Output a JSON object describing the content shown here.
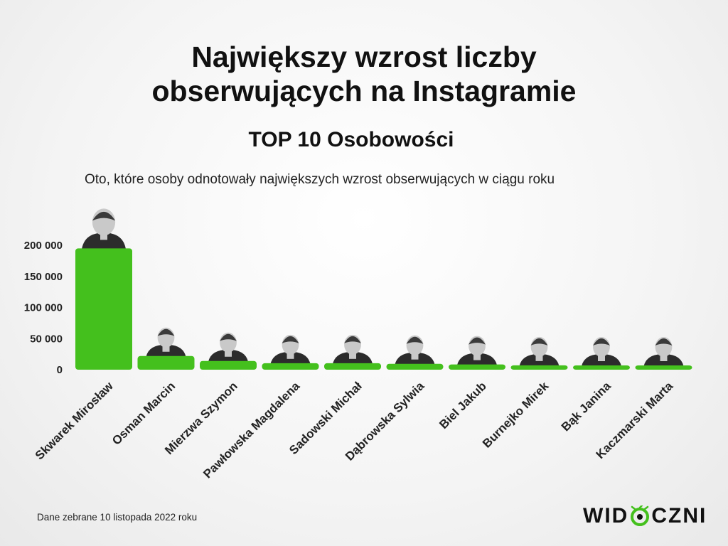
{
  "header": {
    "title_line1": "Największy wzrost liczby",
    "title_line2": "obserwujących na Instagramie",
    "subtitle": "TOP 10 Osobowości",
    "lead": "Oto, które osoby odnotowały największych wzrost obserwujących w ciągu roku"
  },
  "footer": {
    "note": "Dane zebrane 10 listopada 2022 roku",
    "logo_left": "WID",
    "logo_right": "CZNI"
  },
  "colors": {
    "bar": "#44c01d",
    "avatar": "#2c2c2c",
    "skin": "#c9c9c9"
  },
  "chart_data": {
    "type": "bar",
    "title": "Największy wzrost liczby obserwujących na Instagramie",
    "categories": [
      "Skwarek Mirosław",
      "Osman Marcin",
      "Mierzwa Szymon",
      "Pawłowska Magdalena",
      "Sadowski Michał",
      "Dąbrowska Sylwia",
      "Biel Jakub",
      "Burnejko Mirek",
      "Bąk Janina",
      "Kaczmarski Marta"
    ],
    "values": [
      195000,
      22000,
      14000,
      10500,
      10500,
      9500,
      8500,
      7000,
      6000,
      4500
    ],
    "yticks": [
      0,
      50000,
      100000,
      150000,
      200000
    ],
    "ytick_labels": [
      "0",
      "50 000",
      "100 000",
      "150 000",
      "200 000"
    ],
    "ylim": [
      0,
      200000
    ],
    "grid": false,
    "legend": "none"
  }
}
